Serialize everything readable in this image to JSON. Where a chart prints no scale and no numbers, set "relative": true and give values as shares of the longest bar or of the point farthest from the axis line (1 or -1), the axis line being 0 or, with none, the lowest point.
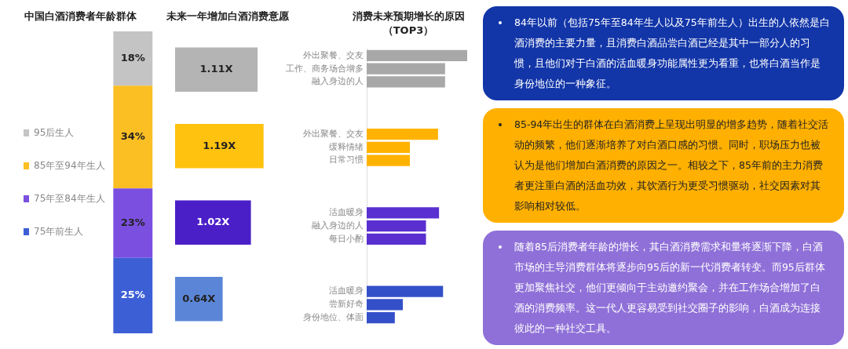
{
  "chart_data": [
    {
      "type": "bar",
      "title": "中国白酒消费者年龄群体",
      "stacked": true,
      "categories": [
        null
      ],
      "legend": "left",
      "series": [
        {
          "name": "75年前生人",
          "color": "#3d5fd6",
          "values": [
            25
          ],
          "value_labels": [
            "25%"
          ]
        },
        {
          "name": "75年至84年生人",
          "color": "#7b4fe0",
          "values": [
            23
          ],
          "value_labels": [
            "23%"
          ]
        },
        {
          "name": "85年至94年生人",
          "color": "#fbbf24",
          "values": [
            34
          ],
          "value_labels": [
            "34%"
          ]
        },
        {
          "name": "95后生人",
          "color": "#c4c4c4",
          "values": [
            18
          ],
          "value_labels": [
            "18%"
          ]
        }
      ]
    },
    {
      "type": "bar",
      "title": "未来一年增加白酒消费意愿",
      "orientation": "horizontal",
      "categories": [
        null,
        null,
        null,
        null
      ],
      "values": [
        1.11,
        1.19,
        1.02,
        0.64
      ],
      "value_labels": [
        "1.11X",
        "1.19X",
        "1.02X",
        "0.64X"
      ],
      "colors": [
        "#b4b4b4",
        "#ffc20e",
        "#4b1fc8",
        "#5b86d8"
      ]
    },
    {
      "type": "bar",
      "title": "消费未来预期增长的原因（TOP3）",
      "orientation": "horizontal",
      "relative": true,
      "categories": [
        "外出聚餐、交友",
        "工作、商务场合增多",
        "融入身边的人",
        null,
        null,
        null,
        "外出聚餐、交友",
        "缓释情绪",
        "日常习惯",
        null,
        null,
        null,
        "活血暖身",
        "融入身边的人",
        "每日小酌",
        null,
        null,
        null,
        "活血暖身",
        "尝新好奇",
        "身份地位、体面"
      ],
      "values": [
        1,
        0.78,
        0.78,
        null,
        null,
        null,
        0.71,
        0.43,
        0.43,
        null,
        null,
        null,
        0.72,
        0.59,
        0.59,
        null,
        null,
        null,
        0.76,
        0.36,
        0.28
      ],
      "colors": [
        "#a8a8a8",
        "#a8a8a8",
        "#a8a8a8",
        null,
        null,
        null,
        "#ffb300",
        "#ffb300",
        "#ffb300",
        null,
        null,
        null,
        "#5a2fd0",
        "#5a2fd0",
        "#5a2fd0",
        null,
        null,
        null,
        "#3450c8",
        "#3450c8",
        "#3450c8"
      ]
    },
    {
      "type": "other",
      "colors": [
        "#1235a8",
        "#ffb000",
        "#8f70d8"
      ],
      "annotations": [
        "84年以前（包括75年至84年生人以及75年前生人）出生的人依然是白酒消费的主要力量，且消费白酒品尝白酒已经是其中一部分人的习惯，且他们对于白酒的活血暖身功能属性更为看重，也将白酒当作是身份地位的一种象征。",
        "85-94年出生的群体在白酒消费上呈现出明显的增多趋势，随着社交活动的频繁，他们逐渐培养了对白酒口感的习惯。同时，职场压力也被认为是他们增加白酒消费的原因之一。相较之下，85年前的主力消费者更注重白酒的活血功效，其饮酒行为更受习惯驱动，社交因素对其影响相对较低。",
        "随着85后消费者年龄的增长，其白酒消费需求和量将逐渐下降，白酒市场的主导消费群体将逐步向95后的新一代消费者转变。而95后群体更加聚焦社交，他们更倾向于主动邀约聚会，并在工作场合增加了白酒的消费频率。这一代人更容易受到社交圈子的影响，白酒成为连接彼此的一种社交工具。"
      ]
    }
  ]
}
